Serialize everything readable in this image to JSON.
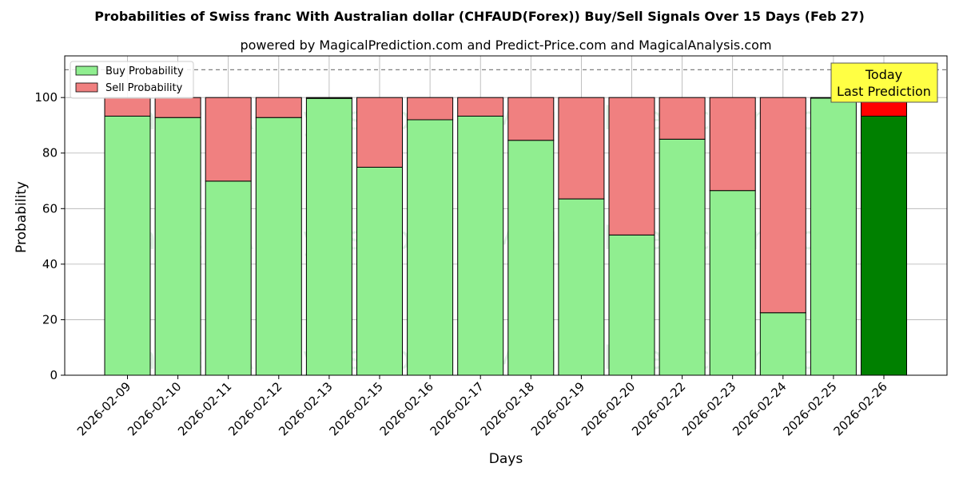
{
  "chart_data": {
    "type": "bar",
    "stacked": true,
    "title": "Probabilities of Swiss franc With Australian dollar (CHFAUD(Forex)) Buy/Sell Signals Over 15 Days (Feb 27)",
    "subtitle": "powered by MagicalPrediction.com and Predict-Price.com and MagicalAnalysis.com",
    "xlabel": "Days",
    "ylabel": "Probability",
    "ylim": [
      0,
      115
    ],
    "yticks": [
      0,
      20,
      40,
      60,
      80,
      100
    ],
    "grid": true,
    "legend_position": "top-left",
    "reference_line": {
      "y": 110,
      "style": "dashed"
    },
    "categories": [
      "2026-02-09",
      "2026-02-10",
      "2026-02-11",
      "2026-02-12",
      "2026-02-13",
      "2026-02-15",
      "2026-02-16",
      "2026-02-17",
      "2026-02-18",
      "2026-02-19",
      "2026-02-20",
      "2026-02-22",
      "2026-02-23",
      "2026-02-24",
      "2026-02-25",
      "2026-02-26"
    ],
    "series": [
      {
        "name": "Buy Probability",
        "color": "#90ee90",
        "highlight_color": "#008000",
        "values": [
          93.3,
          92.8,
          69.9,
          92.8,
          99.7,
          74.9,
          92.0,
          93.3,
          84.6,
          63.5,
          50.5,
          85.0,
          66.5,
          22.5,
          99.8,
          93.3
        ]
      },
      {
        "name": "Sell Probability",
        "color": "#f08080",
        "highlight_color": "#ff0000",
        "values": [
          6.7,
          7.2,
          30.1,
          7.2,
          0.3,
          25.1,
          8.0,
          6.7,
          15.4,
          36.5,
          49.5,
          15.0,
          33.5,
          77.5,
          0.2,
          6.7
        ]
      }
    ],
    "highlight_index": 15,
    "annotation": {
      "lines": [
        "Today",
        "Last Prediction"
      ],
      "bg_color": "#ffff44"
    },
    "watermarks": [
      "MagicalAnalysis.com",
      "MagicalPrediction.com"
    ]
  }
}
